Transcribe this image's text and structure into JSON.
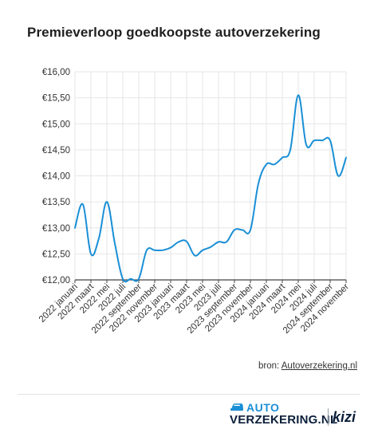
{
  "title": "Premieverloop goedkoopste autoverzekering",
  "source_prefix": "bron: ",
  "source_link": "Autoverzekering.nl",
  "logo": {
    "line1": "AUTO",
    "line2": "VERZEKERING.NL",
    "brand2": "kizi",
    "icon": "car-icon"
  },
  "colors": {
    "line": "#1a8fd6",
    "grid": "#e6e6e6",
    "axis": "#444444"
  },
  "chart_data": {
    "type": "line",
    "xlabel": "",
    "ylabel": "",
    "ylim": [
      12.0,
      16.0
    ],
    "yticks": [
      12.0,
      12.5,
      13.0,
      13.5,
      14.0,
      14.5,
      15.0,
      15.5,
      16.0
    ],
    "ytick_labels": [
      "€12,00",
      "€12,50",
      "€13,00",
      "€13,50",
      "€14,00",
      "€14,50",
      "€15,00",
      "€15,50",
      "€16,00"
    ],
    "xtick_labels": [
      "2022 januari",
      "2022 maart",
      "2022 mei",
      "2022 juli",
      "2022 september",
      "2022 november",
      "2023 januari",
      "2023 maart",
      "2023 mei",
      "2023 juli",
      "2023 september",
      "2023 november",
      "2024 januari",
      "2024 maart",
      "2024 mei",
      "2024 juli",
      "2024 september",
      "2024 november"
    ],
    "grid": true,
    "legend": "none",
    "series": [
      {
        "x": [
          0,
          0.5,
          1,
          1.5,
          2,
          2.5,
          3,
          3.5,
          4,
          4.5,
          5,
          5.5,
          6,
          6.5,
          7,
          7.5,
          8,
          8.5,
          9,
          9.5,
          10,
          10.5,
          11,
          11.5,
          12,
          12.5,
          13,
          13.5,
          14,
          14.5,
          15,
          15.5,
          16,
          16.5,
          17
        ],
        "values": [
          13.0,
          13.45,
          12.5,
          12.8,
          13.5,
          12.7,
          12.02,
          12.02,
          12.02,
          12.57,
          12.57,
          12.57,
          12.62,
          12.73,
          12.74,
          12.47,
          12.57,
          12.63,
          12.73,
          12.73,
          12.96,
          12.96,
          12.96,
          13.85,
          14.22,
          14.22,
          14.35,
          14.5,
          15.55,
          14.6,
          14.68,
          14.68,
          14.68,
          14.0,
          14.35
        ]
      }
    ]
  }
}
